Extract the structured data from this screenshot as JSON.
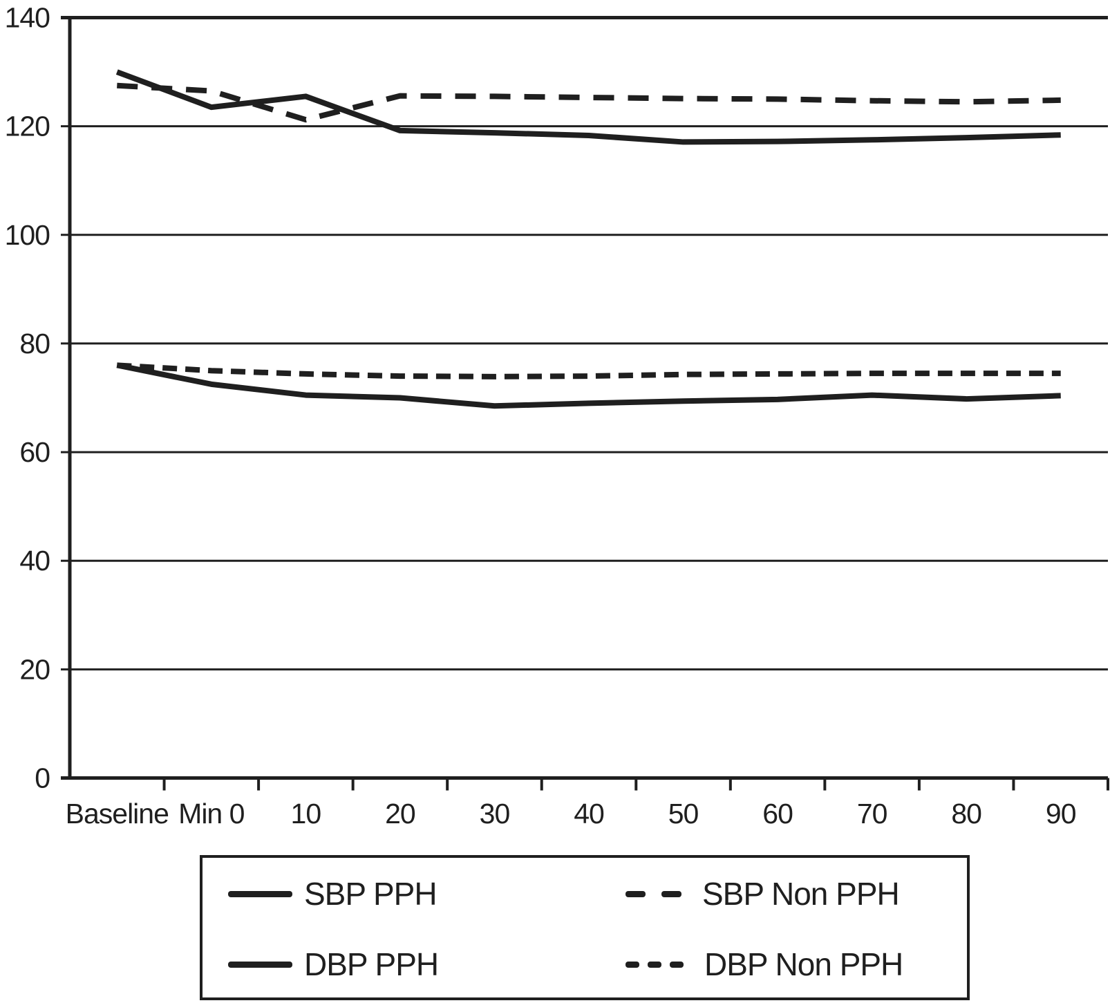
{
  "figure": {
    "background": "#ffffff",
    "ink_color": "#1f1f1f"
  },
  "chart_data": {
    "type": "line",
    "title": "",
    "xlabel": "",
    "ylabel": "",
    "categories": [
      "Baseline",
      "Min 0",
      "10",
      "20",
      "30",
      "40",
      "50",
      "60",
      "70",
      "80",
      "90"
    ],
    "series": [
      {
        "name": "SBP PPH",
        "style": "solid",
        "values": [
          130,
          123.5,
          125.5,
          119.2,
          118.8,
          118.3,
          117.1,
          117.2,
          117.5,
          117.9,
          118.4
        ]
      },
      {
        "name": "SBP Non PPH",
        "style": "dashed-long",
        "values": [
          127.5,
          126.5,
          121.2,
          125.6,
          125.5,
          125.3,
          125.1,
          125,
          124.7,
          124.5,
          124.8
        ]
      },
      {
        "name": "DBP PPH",
        "style": "solid",
        "values": [
          76,
          72.5,
          70.5,
          70,
          68.5,
          69,
          69.4,
          69.7,
          70.5,
          69.8,
          70.4
        ]
      },
      {
        "name": "DBP Non PPH",
        "style": "dashed-short",
        "values": [
          76,
          75,
          74.4,
          74,
          73.9,
          74,
          74.3,
          74.4,
          74.5,
          74.5,
          74.5
        ]
      }
    ],
    "ylim": [
      0,
      140
    ],
    "y_ticks": [
      0,
      20,
      40,
      60,
      80,
      100,
      120,
      140
    ],
    "grid": "horizontal",
    "legend_position": "bottom"
  }
}
